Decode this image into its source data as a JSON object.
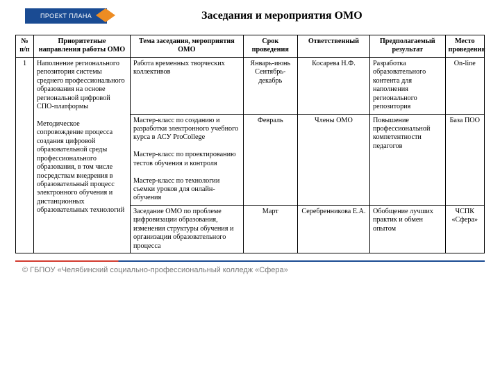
{
  "badge": "ПРОЕКТ ПЛАНА",
  "title": "Заседания и мероприятия ОМО",
  "columns": [
    "№ п/п",
    "Приоритетные направления работы ОМО",
    "Тема заседания, мероприятия ОМО",
    "Срок проведения",
    "Ответственный",
    "Предполагаемый результат",
    "Место проведения"
  ],
  "row_number": "1",
  "directions": "Наполнение регионального репозитория системы среднего профессионального образования на основе региональной цифровой СПО-платформы\n\nМетодическое сопровождение процесса создания цифровой образовательной среды профессионального образования, в том числе посредствам внедрения в образовательный процесс электронного обучения и дистанционных образовательных технологий",
  "rows": [
    {
      "topic": "Работа временных творческих коллективов",
      "period": "Январь-июнь\nСентябрь-декабрь",
      "responsible": "Косарева Н.Ф.",
      "result": "Разработка образовательного контента для наполнения регионального репозитория",
      "location": "On-line"
    },
    {
      "topic": "Мастер-класс по созданию и разработки электронного учебного курса в АСУ ProCollege\n\nМастер-класс по проектированию тестов обучения и контроля\n\nМастер-класс по технологии съемки уроков для онлайн-обучения",
      "period": "Февраль",
      "responsible": "Члены ОМО",
      "result": "Повышение профессиональной компетентности педагогов",
      "location": "База ПОО"
    },
    {
      "topic": "Заседание ОМО по проблеме цифровизации образования, изменения структуры обучения и организации образовательного процесса",
      "period": "Март",
      "responsible": "Серебренникова Е.А.",
      "result": "Обобщение лучших практик и обмен опытом",
      "location": "ЧСПК «Сфера»"
    }
  ],
  "footer": "© ГБПОУ «Челябинский социально-профессиональный колледж «Сфера»",
  "colors": {
    "badge_bg": "#1a4b93",
    "accent": "#ed8c23",
    "rule_red": "#d23a2e",
    "rule_blue": "#1a4b93",
    "footer_text": "#7a7a7a"
  }
}
